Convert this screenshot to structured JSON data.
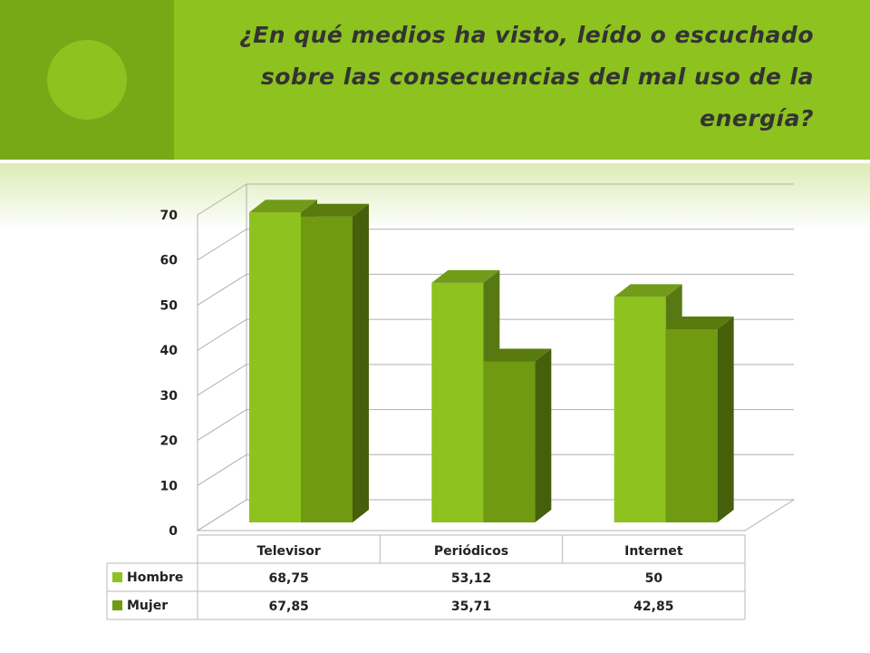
{
  "title": "¿En qué medios ha visto, leído o escuchado sobre las consecuencias del mal uso de la energía?",
  "colors": {
    "header": "#8dc21f",
    "header_accent": "#77a816",
    "hombre": "#8dc21f",
    "mujer": "#6f9a12"
  },
  "chart_data": {
    "type": "bar",
    "categories": [
      "Televisor",
      "Periódicos",
      "Internet"
    ],
    "series": [
      {
        "name": "Hombre",
        "values": [
          68.75,
          53.12,
          50
        ],
        "labels": [
          "68,75",
          "53,12",
          "50"
        ]
      },
      {
        "name": "Mujer",
        "values": [
          67.85,
          35.71,
          42.85
        ],
        "labels": [
          "67,85",
          "35,71",
          "42,85"
        ]
      }
    ],
    "ylim": [
      0,
      70
    ],
    "yticks": [
      "0",
      "10",
      "20",
      "30",
      "40",
      "50",
      "60",
      "70"
    ],
    "grid": true,
    "three_d": true,
    "data_table": true
  }
}
